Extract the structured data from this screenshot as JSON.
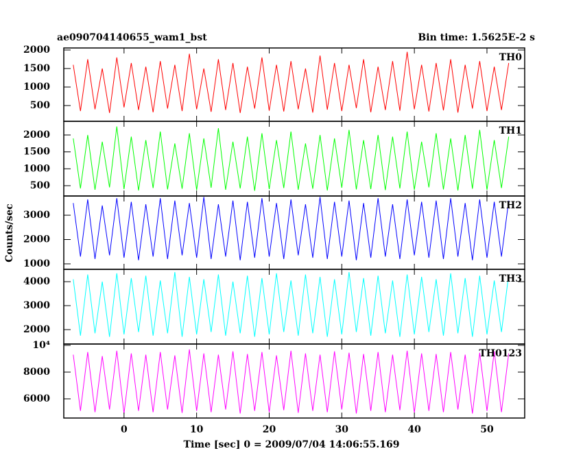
{
  "chart_data": [
    {
      "type": "line",
      "title": "ae090704140655_wam1_bst",
      "subtitle": "Bin time: 1.5625E-2 s",
      "series": [
        {
          "name": "TH0",
          "color": "#ff0000",
          "values": [
            1600,
            350,
            1750,
            400,
            1500,
            300,
            1800,
            450,
            1650,
            380,
            1550,
            320,
            1700,
            420,
            1600,
            350,
            1900,
            400,
            1500,
            330,
            1750,
            380,
            1650,
            300,
            1550,
            420,
            1800,
            360,
            1600,
            340,
            1700,
            400,
            1500,
            310,
            1850,
            390,
            1650,
            350,
            1600,
            430,
            1750,
            320,
            1550,
            380,
            1700,
            360,
            1950,
            400,
            1600,
            340,
            1650,
            370,
            1750,
            310,
            1600,
            420,
            1700,
            350,
            1550,
            380,
            1650
          ]
        }
      ],
      "x": [
        -7,
        -6,
        -5,
        -4,
        -3,
        -2,
        -1,
        0,
        1,
        2,
        3,
        4,
        5,
        6,
        7,
        8,
        9,
        10,
        11,
        12,
        13,
        14,
        15,
        16,
        17,
        18,
        19,
        20,
        21,
        22,
        23,
        24,
        25,
        26,
        27,
        28,
        29,
        30,
        31,
        32,
        33,
        34,
        35,
        36,
        37,
        38,
        39,
        40,
        41,
        42,
        43,
        44,
        45,
        46,
        47,
        48,
        49,
        50,
        51,
        52,
        53
      ],
      "xlim": [
        -8.3,
        55.2
      ],
      "xticks": [
        0,
        10,
        20,
        30,
        40,
        50
      ],
      "ylim": [
        75,
        2055
      ],
      "yticks": [
        500,
        1000,
        1500,
        2000
      ]
    },
    {
      "type": "line",
      "series": [
        {
          "name": "TH1",
          "color": "#00ff00",
          "values": [
            1900,
            420,
            2000,
            380,
            1800,
            450,
            2250,
            400,
            1950,
            360,
            1850,
            430,
            2100,
            390,
            1750,
            410,
            2050,
            370,
            1900,
            440,
            2200,
            380,
            1800,
            420,
            1950,
            350,
            2050,
            400,
            1850,
            430,
            2100,
            380,
            1750,
            410,
            2000,
            360,
            1900,
            440,
            2150,
            390,
            1850,
            400,
            2000,
            370,
            1950,
            420,
            2100,
            380,
            1800,
            450,
            2050,
            390,
            1900,
            360,
            2000,
            410,
            2150,
            380,
            1850,
            430,
            1950
          ]
        }
      ],
      "x": [
        -7,
        -6,
        -5,
        -4,
        -3,
        -2,
        -1,
        0,
        1,
        2,
        3,
        4,
        5,
        6,
        7,
        8,
        9,
        10,
        11,
        12,
        13,
        14,
        15,
        16,
        17,
        18,
        19,
        20,
        21,
        22,
        23,
        24,
        25,
        26,
        27,
        28,
        29,
        30,
        31,
        32,
        33,
        34,
        35,
        36,
        37,
        38,
        39,
        40,
        41,
        42,
        43,
        44,
        45,
        46,
        47,
        48,
        49,
        50,
        51,
        52,
        53
      ],
      "xlim": [
        -8.3,
        55.2
      ],
      "xticks": [
        0,
        10,
        20,
        30,
        40,
        50
      ],
      "ylim": [
        195,
        2405
      ],
      "yticks": [
        500,
        1000,
        1500,
        2000
      ]
    },
    {
      "type": "line",
      "ylabel": "Counts/sec",
      "series": [
        {
          "name": "TH2",
          "color": "#0000ff",
          "values": [
            3500,
            1300,
            3650,
            1200,
            3400,
            1350,
            3700,
            1250,
            3550,
            1150,
            3450,
            1300,
            3700,
            1200,
            3600,
            1350,
            3500,
            1250,
            3750,
            1200,
            3450,
            1300,
            3600,
            1150,
            3550,
            1250,
            3700,
            1300,
            3500,
            1200,
            3650,
            1350,
            3450,
            1250,
            3750,
            1200,
            3550,
            1300,
            3600,
            1150,
            3500,
            1250,
            3700,
            1300,
            3450,
            1200,
            3650,
            1350,
            3550,
            1250,
            3600,
            1200,
            3700,
            1300,
            3500,
            1150,
            3650,
            1250,
            3550,
            1300,
            3600
          ]
        }
      ],
      "x": [
        -7,
        -6,
        -5,
        -4,
        -3,
        -2,
        -1,
        0,
        1,
        2,
        3,
        4,
        5,
        6,
        7,
        8,
        9,
        10,
        11,
        12,
        13,
        14,
        15,
        16,
        17,
        18,
        19,
        20,
        21,
        22,
        23,
        24,
        25,
        26,
        27,
        28,
        29,
        30,
        31,
        32,
        33,
        34,
        35,
        36,
        37,
        38,
        39,
        40,
        41,
        42,
        43,
        44,
        45,
        46,
        47,
        48,
        49,
        50,
        51,
        52,
        53
      ],
      "xlim": [
        -8.3,
        55.2
      ],
      "xticks": [
        0,
        10,
        20,
        30,
        40,
        50
      ],
      "ylim": [
        775,
        3790
      ],
      "yticks": [
        1000,
        2000,
        3000
      ]
    },
    {
      "type": "line",
      "series": [
        {
          "name": "TH3",
          "color": "#00ffff",
          "values": [
            4100,
            1750,
            4300,
            1850,
            4000,
            1700,
            4350,
            1800,
            4150,
            1900,
            4250,
            1750,
            4050,
            1850,
            4400,
            1700,
            4200,
            1800,
            4100,
            1900,
            4300,
            1750,
            4000,
            1850,
            4250,
            1700,
            4150,
            1800,
            4350,
            1900,
            4050,
            1750,
            4300,
            1850,
            4200,
            1700,
            4100,
            1800,
            4400,
            1900,
            4150,
            1750,
            4250,
            1850,
            4050,
            1700,
            4300,
            1800,
            4200,
            1900,
            4100,
            1750,
            4350,
            1850,
            4150,
            1700,
            4250,
            1800,
            4050,
            1900,
            4300
          ]
        }
      ],
      "x": [
        -7,
        -6,
        -5,
        -4,
        -3,
        -2,
        -1,
        0,
        1,
        2,
        3,
        4,
        5,
        6,
        7,
        8,
        9,
        10,
        11,
        12,
        13,
        14,
        15,
        16,
        17,
        18,
        19,
        20,
        21,
        22,
        23,
        24,
        25,
        26,
        27,
        28,
        29,
        30,
        31,
        32,
        33,
        34,
        35,
        36,
        37,
        38,
        39,
        40,
        41,
        42,
        43,
        44,
        45,
        46,
        47,
        48,
        49,
        50,
        51,
        52,
        53
      ],
      "xlim": [
        -8.3,
        55.2
      ],
      "xticks": [
        0,
        10,
        20,
        30,
        40,
        50
      ],
      "ylim": [
        1400,
        4515
      ],
      "yticks": [
        2000,
        3000,
        4000
      ]
    },
    {
      "type": "line",
      "xlabel": "Time [sec] 0 = 2009/07/04 14:06:55.169",
      "series": [
        {
          "name": "TH0123",
          "color": "#ff00ff",
          "values": [
            9300,
            5100,
            9500,
            5000,
            9200,
            5200,
            9600,
            4900,
            9400,
            5100,
            9300,
            5000,
            9500,
            5200,
            9250,
            4950,
            9700,
            5100,
            9400,
            5000,
            9300,
            5200,
            9550,
            4900,
            9350,
            5100,
            9500,
            5000,
            9250,
            5150,
            9600,
            4950,
            9400,
            5100,
            9300,
            5000,
            9550,
            5200,
            9450,
            4900,
            9350,
            5100,
            9500,
            5000,
            9300,
            5150,
            9600,
            4950,
            9400,
            5100,
            9350,
            5000,
            9500,
            5200,
            9300,
            4900,
            9450,
            5100,
            9550,
            5000,
            9400
          ]
        }
      ],
      "x": [
        -7,
        -6,
        -5,
        -4,
        -3,
        -2,
        -1,
        0,
        1,
        2,
        3,
        4,
        5,
        6,
        7,
        8,
        9,
        10,
        11,
        12,
        13,
        14,
        15,
        16,
        17,
        18,
        19,
        20,
        21,
        22,
        23,
        24,
        25,
        26,
        27,
        28,
        29,
        30,
        31,
        32,
        33,
        34,
        35,
        36,
        37,
        38,
        39,
        40,
        41,
        42,
        43,
        44,
        45,
        46,
        47,
        48,
        49,
        50,
        51,
        52,
        53
      ],
      "xlim": [
        -8.3,
        55.2
      ],
      "xticks": [
        0,
        10,
        20,
        30,
        40,
        50
      ],
      "ylim": [
        4565,
        10100
      ],
      "yticks": [
        6000,
        8000,
        {
          "value": 10000,
          "label": "10⁴"
        }
      ]
    }
  ]
}
